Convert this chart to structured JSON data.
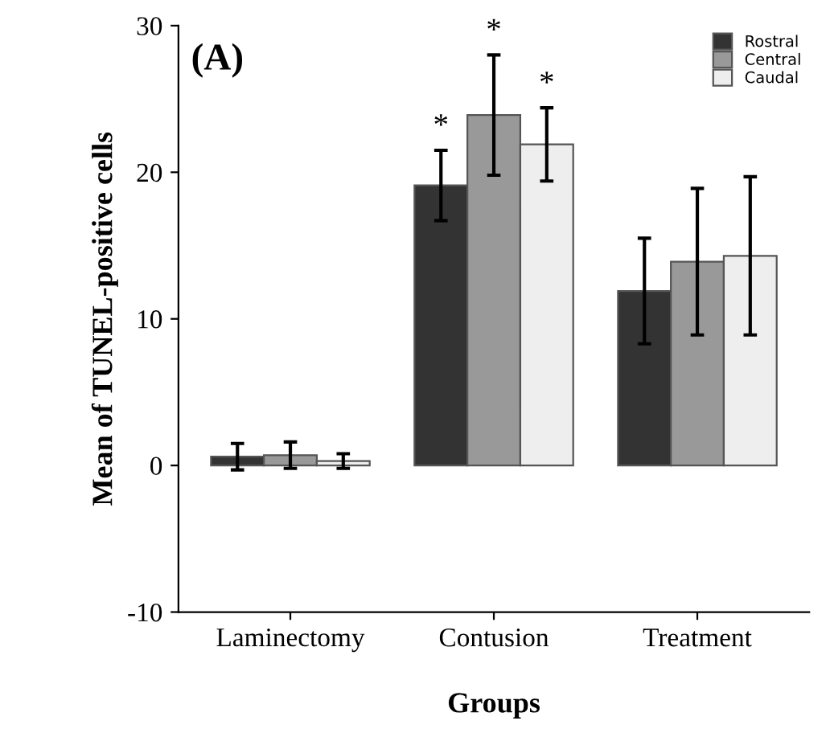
{
  "chart_data": {
    "type": "bar",
    "xlabel": "Groups",
    "ylabel": "Mean of TUNEL-positive cells",
    "categories": [
      "Laminectomy",
      "Contusion",
      "Treatment"
    ],
    "series": [
      {
        "name": "Rostral",
        "color": "#333333",
        "values": [
          0.6,
          19.1,
          11.9
        ],
        "errors": [
          0.9,
          2.4,
          3.6
        ]
      },
      {
        "name": "Central",
        "color": "#999999",
        "values": [
          0.7,
          23.9,
          13.9
        ],
        "errors": [
          0.9,
          4.1,
          5.0
        ]
      },
      {
        "name": "Caudal",
        "color": "#eeeeee",
        "values": [
          0.3,
          21.9,
          14.3
        ],
        "errors": [
          0.5,
          2.5,
          5.4
        ]
      }
    ],
    "annotations": [
      "(A)",
      "*",
      "*",
      "*"
    ],
    "ylim": [
      -10,
      30
    ],
    "yticks": [
      -10,
      0,
      10,
      20,
      30
    ],
    "grid": false,
    "legend": "top right"
  }
}
